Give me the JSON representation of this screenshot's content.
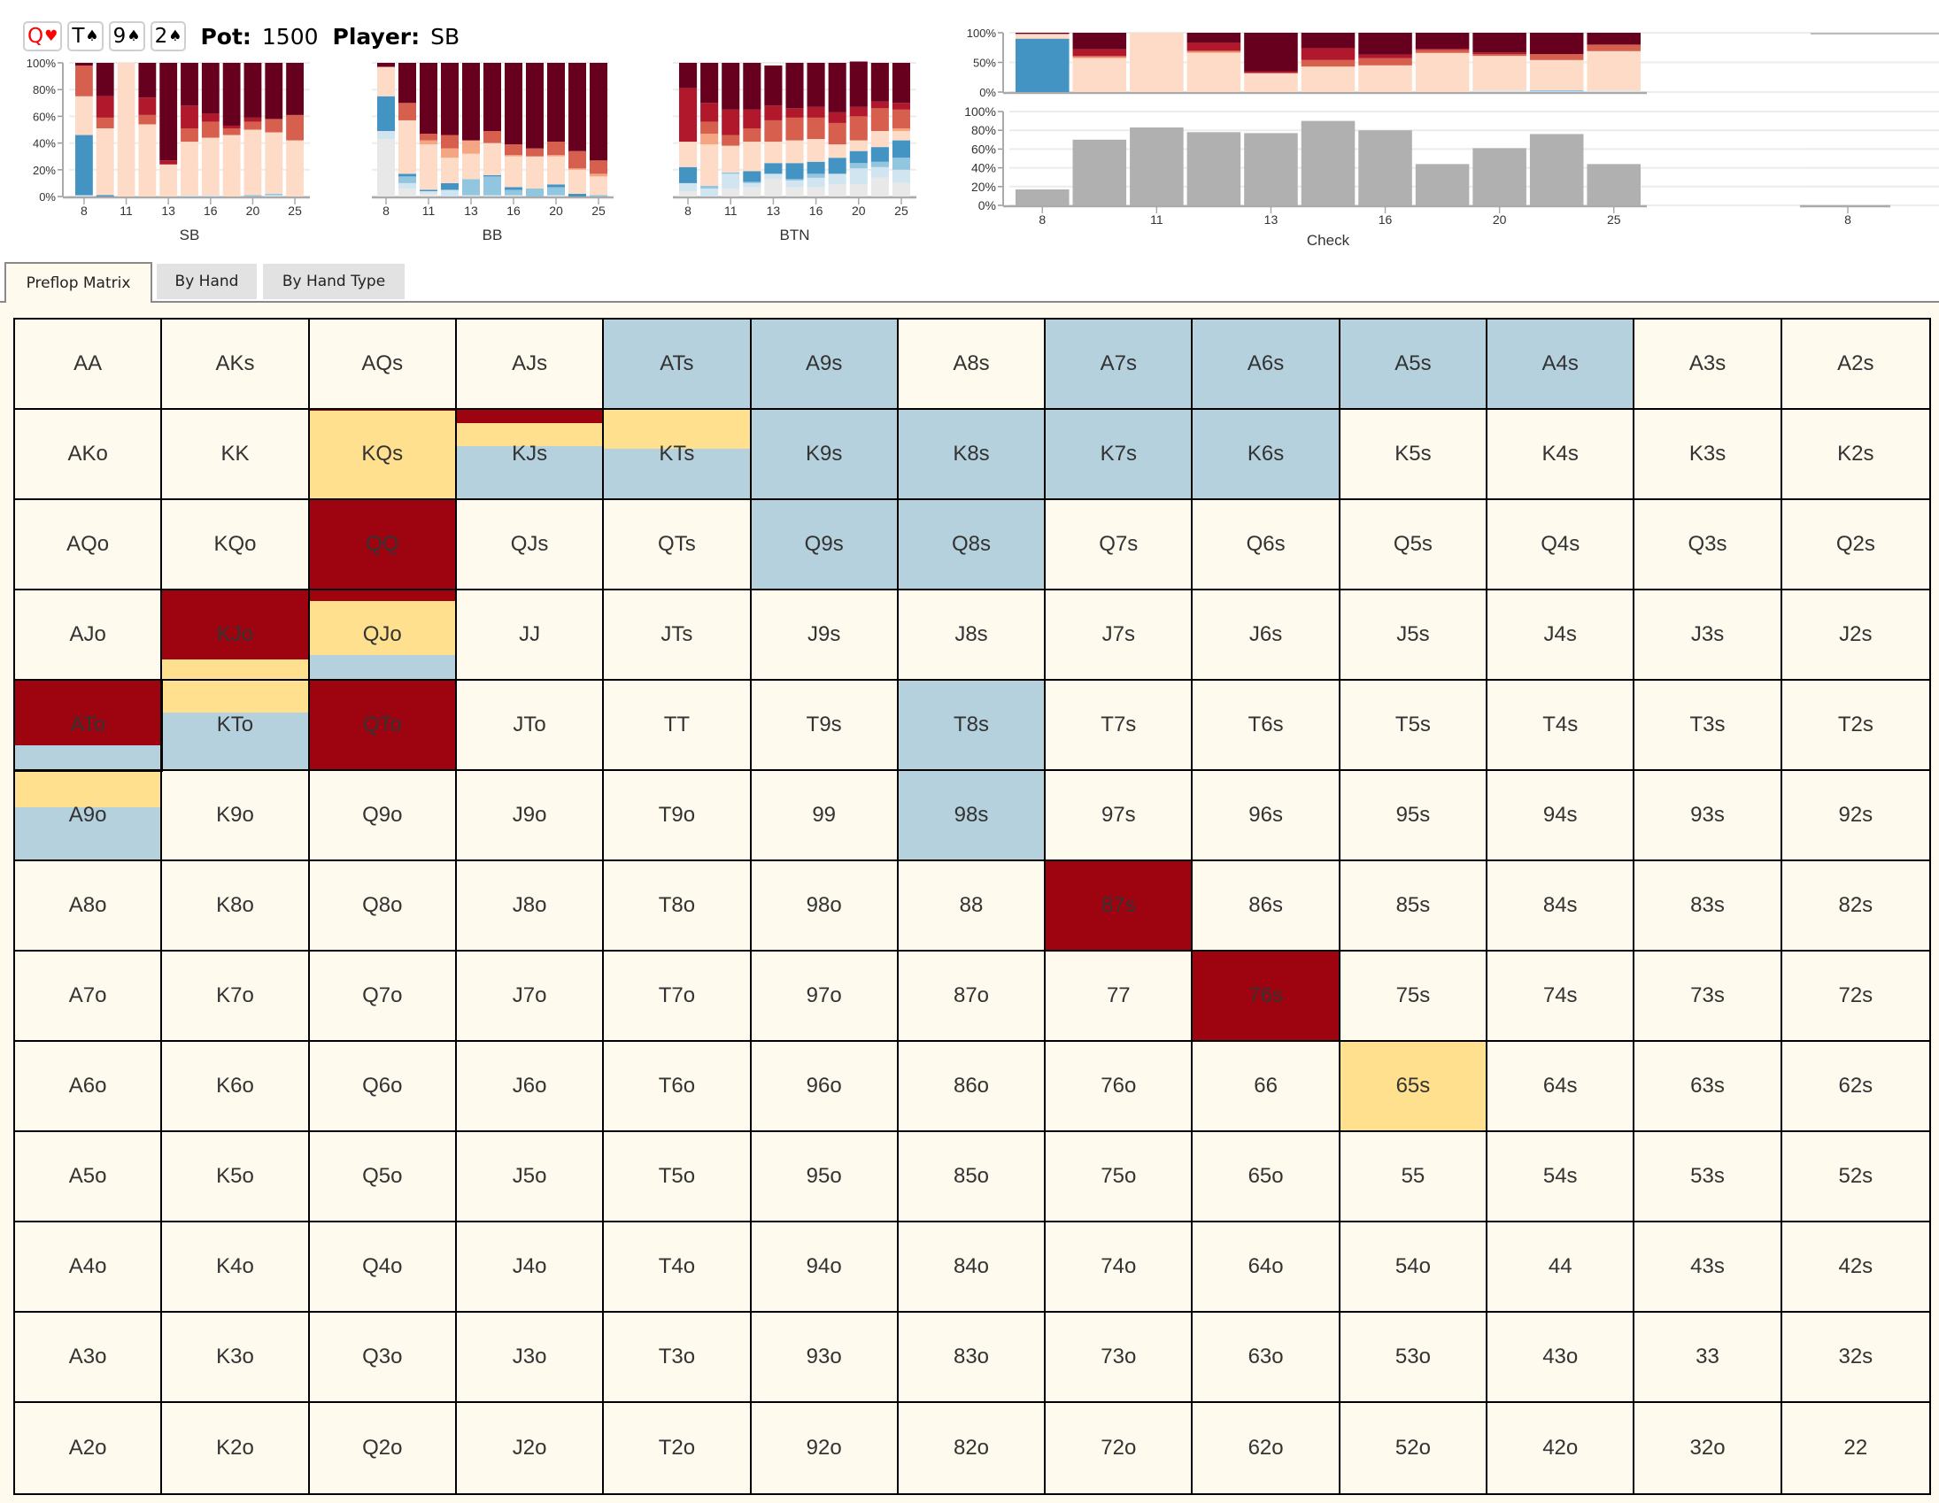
{
  "header": {
    "board": [
      {
        "rank": "Q",
        "suit": "♥",
        "color": "red"
      },
      {
        "rank": "T",
        "suit": "♠",
        "color": "black"
      },
      {
        "rank": "9",
        "suit": "♠",
        "color": "black"
      },
      {
        "rank": "2",
        "suit": "♠",
        "color": "black"
      }
    ],
    "pot_label": "Pot:",
    "pot_value": "1500",
    "player_label": "Player:",
    "player_value": "SB"
  },
  "colors": {
    "darkest_red": "#67001f",
    "red": "#b2182b",
    "salmon": "#d6604d",
    "light_salmon": "#f4a582",
    "peach": "#fddbc7",
    "light_grey": "#e8e8e8",
    "pale_blue": "#d1e5f0",
    "sky_blue": "#92c5de",
    "blue": "#4393c3",
    "grey_bar": "#b0b0b0",
    "cell_bg": "#fffaee",
    "cell_red": "#9e0410",
    "cell_yellow": "#ffe08f",
    "cell_blue": "#b5d1de"
  },
  "chart_data": [
    {
      "type": "bar",
      "stacked": true,
      "title": "",
      "xlabel": "SB",
      "ylabel": "",
      "ylim": [
        0,
        100
      ],
      "yticks": [
        "0%",
        "20%",
        "40%",
        "60%",
        "80%",
        "100%"
      ],
      "categories": [
        "8",
        "9",
        "11",
        "12",
        "13",
        "15",
        "16",
        "18",
        "20",
        "22",
        "25"
      ],
      "xtick_labels": [
        "8",
        "",
        "11",
        "",
        "13",
        "",
        "16",
        "",
        "20",
        "",
        "25"
      ],
      "series": [
        {
          "name": "light_grey",
          "color": "#e8e8e8",
          "values": [
            0,
            0,
            0,
            0,
            0,
            0,
            0,
            0,
            0,
            0,
            0
          ]
        },
        {
          "name": "pale_blue",
          "color": "#d1e5f0",
          "values": [
            1,
            0,
            0,
            0,
            0,
            1,
            1,
            0,
            0,
            1,
            0
          ]
        },
        {
          "name": "sky_blue",
          "color": "#92c5de",
          "values": [
            0,
            0,
            0,
            0,
            0,
            0,
            0,
            0,
            1,
            1,
            0
          ]
        },
        {
          "name": "blue",
          "color": "#4393c3",
          "values": [
            45,
            1,
            0,
            0,
            0,
            0,
            0,
            0,
            0,
            0,
            0
          ]
        },
        {
          "name": "peach",
          "color": "#fddbc7",
          "values": [
            29,
            50,
            100,
            54,
            24,
            40,
            43,
            46,
            49,
            46,
            42
          ]
        },
        {
          "name": "light_salmon",
          "color": "#f4a582",
          "values": [
            0,
            0,
            0,
            0,
            0,
            0,
            0,
            0,
            0,
            0,
            0
          ]
        },
        {
          "name": "salmon",
          "color": "#d6604d",
          "values": [
            23,
            8,
            0,
            7,
            0,
            10,
            12,
            5,
            6,
            10,
            19
          ]
        },
        {
          "name": "red",
          "color": "#b2182b",
          "values": [
            0,
            16,
            0,
            13,
            3,
            17,
            6,
            2,
            3,
            0,
            0
          ]
        },
        {
          "name": "darkest_red",
          "color": "#67001f",
          "values": [
            2,
            25,
            0,
            26,
            73,
            32,
            38,
            47,
            41,
            42,
            39
          ]
        }
      ]
    },
    {
      "type": "bar",
      "stacked": true,
      "title": "",
      "xlabel": "BB",
      "ylabel": "",
      "ylim": [
        0,
        100
      ],
      "yticks": [],
      "categories": [
        "8",
        "9",
        "11",
        "12",
        "13",
        "15",
        "16",
        "18",
        "20",
        "22",
        "25"
      ],
      "xtick_labels": [
        "8",
        "",
        "11",
        "",
        "13",
        "",
        "16",
        "",
        "20",
        "",
        "25"
      ],
      "series": [
        {
          "name": "light_grey",
          "color": "#e8e8e8",
          "values": [
            43,
            6,
            2,
            0,
            0,
            0,
            0,
            0,
            0,
            0,
            0
          ]
        },
        {
          "name": "pale_blue",
          "color": "#d1e5f0",
          "values": [
            6,
            4,
            2,
            5,
            1,
            1,
            1,
            0,
            1,
            0,
            0
          ]
        },
        {
          "name": "sky_blue",
          "color": "#92c5de",
          "values": [
            0,
            5,
            0,
            0,
            12,
            14,
            4,
            6,
            6,
            0,
            1
          ]
        },
        {
          "name": "blue",
          "color": "#4393c3",
          "values": [
            26,
            2,
            1,
            5,
            0,
            1,
            2,
            0,
            2,
            2,
            0
          ]
        },
        {
          "name": "peach",
          "color": "#fddbc7",
          "values": [
            22,
            40,
            34,
            19,
            19,
            24,
            23,
            24,
            21,
            18,
            14
          ]
        },
        {
          "name": "light_salmon",
          "color": "#f4a582",
          "values": [
            0,
            0,
            3,
            7,
            10,
            0,
            1,
            0,
            1,
            1,
            2
          ]
        },
        {
          "name": "salmon",
          "color": "#d6604d",
          "values": [
            0,
            13,
            5,
            10,
            0,
            9,
            8,
            6,
            10,
            13,
            10
          ]
        },
        {
          "name": "red",
          "color": "#b2182b",
          "values": [
            0,
            0,
            0,
            0,
            0,
            0,
            0,
            0,
            0,
            0,
            0
          ]
        },
        {
          "name": "darkest_red",
          "color": "#67001f",
          "values": [
            3,
            30,
            53,
            54,
            58,
            51,
            61,
            64,
            59,
            66,
            73
          ]
        }
      ]
    },
    {
      "type": "bar",
      "stacked": true,
      "title": "",
      "xlabel": "BTN",
      "ylabel": "",
      "ylim": [
        0,
        100
      ],
      "yticks": [],
      "categories": [
        "8",
        "9",
        "11",
        "12",
        "13",
        "15",
        "16",
        "18",
        "20",
        "22",
        "25"
      ],
      "xtick_labels": [
        "8",
        "",
        "11",
        "",
        "13",
        "",
        "16",
        "",
        "20",
        "",
        "25"
      ],
      "series": [
        {
          "name": "light_grey",
          "color": "#e8e8e8",
          "values": [
            4,
            0,
            6,
            7,
            13,
            7,
            7,
            9,
            9,
            14,
            10
          ]
        },
        {
          "name": "pale_blue",
          "color": "#d1e5f0",
          "values": [
            6,
            6,
            11,
            3,
            4,
            5,
            7,
            8,
            12,
            8,
            10
          ]
        },
        {
          "name": "sky_blue",
          "color": "#92c5de",
          "values": [
            0,
            2,
            1,
            1,
            0,
            1,
            3,
            0,
            4,
            4,
            9
          ]
        },
        {
          "name": "blue",
          "color": "#4393c3",
          "values": [
            12,
            0,
            0,
            8,
            8,
            12,
            9,
            12,
            9,
            11,
            13
          ]
        },
        {
          "name": "peach",
          "color": "#fddbc7",
          "values": [
            19,
            31,
            20,
            22,
            16,
            17,
            17,
            10,
            8,
            12,
            7
          ]
        },
        {
          "name": "light_salmon",
          "color": "#f4a582",
          "values": [
            0,
            8,
            0,
            0,
            0,
            0,
            0,
            0,
            0,
            0,
            2
          ]
        },
        {
          "name": "salmon",
          "color": "#d6604d",
          "values": [
            0,
            9,
            8,
            10,
            16,
            17,
            16,
            16,
            18,
            17,
            14
          ]
        },
        {
          "name": "red",
          "color": "#b2182b",
          "values": [
            40,
            14,
            19,
            14,
            11,
            7,
            8,
            8,
            7,
            5,
            5
          ]
        },
        {
          "name": "darkest_red",
          "color": "#67001f",
          "values": [
            19,
            30,
            35,
            35,
            30,
            34,
            33,
            37,
            34,
            29,
            30
          ]
        }
      ]
    },
    {
      "type": "bar",
      "stacked": true,
      "title": "",
      "xlabel": "",
      "ylabel": "",
      "ylim": [
        0,
        100
      ],
      "yticks": [
        "0%",
        "50%",
        "100%"
      ],
      "categories": [
        "8",
        "9",
        "11",
        "12",
        "13",
        "15",
        "16",
        "18",
        "20",
        "22",
        "25"
      ],
      "xtick_labels": [],
      "series": [
        {
          "name": "light_grey",
          "color": "#e8e8e8",
          "values": [
            0,
            0,
            0,
            0,
            0,
            0,
            0,
            0,
            0,
            0,
            0
          ]
        },
        {
          "name": "pale_blue",
          "color": "#d1e5f0",
          "values": [
            0,
            0,
            0,
            0,
            0,
            0,
            0,
            0,
            2,
            1,
            2
          ]
        },
        {
          "name": "sky_blue",
          "color": "#92c5de",
          "values": [
            0,
            0,
            0,
            0,
            0,
            0,
            0,
            0,
            0,
            2,
            0
          ]
        },
        {
          "name": "blue",
          "color": "#4393c3",
          "values": [
            90,
            0,
            0,
            0,
            0,
            0,
            0,
            0,
            0,
            0,
            0
          ]
        },
        {
          "name": "peach",
          "color": "#fddbc7",
          "values": [
            8,
            57,
            100,
            66,
            32,
            43,
            45,
            66,
            59,
            51,
            67
          ]
        },
        {
          "name": "light_salmon",
          "color": "#f4a582",
          "values": [
            0,
            2,
            0,
            2,
            0,
            0,
            0,
            0,
            0,
            0,
            0
          ]
        },
        {
          "name": "salmon",
          "color": "#d6604d",
          "values": [
            0,
            2,
            0,
            2,
            0,
            11,
            12,
            5,
            3,
            10,
            11
          ]
        },
        {
          "name": "red",
          "color": "#b2182b",
          "values": [
            0,
            11,
            0,
            13,
            3,
            20,
            6,
            2,
            3,
            0,
            0
          ]
        },
        {
          "name": "darkest_red",
          "color": "#67001f",
          "values": [
            2,
            28,
            0,
            17,
            65,
            26,
            37,
            27,
            33,
            36,
            20
          ]
        }
      ]
    },
    {
      "type": "bar",
      "stacked": false,
      "title": "",
      "xlabel": "Check",
      "ylabel": "",
      "ylim": [
        0,
        100
      ],
      "yticks": [
        "0%",
        "20%",
        "40%",
        "60%",
        "80%",
        "100%"
      ],
      "categories": [
        "8",
        "9",
        "11",
        "12",
        "13",
        "15",
        "16",
        "18",
        "20",
        "22",
        "25"
      ],
      "xtick_labels": [
        "8",
        "",
        "11",
        "",
        "13",
        "",
        "16",
        "",
        "20",
        "",
        "25"
      ],
      "series": [
        {
          "name": "Check",
          "color": "#b0b0b0",
          "values": [
            17,
            70,
            83,
            78,
            77,
            90,
            80,
            44,
            61,
            76,
            44
          ]
        }
      ]
    },
    {
      "type": "bar",
      "stacked": false,
      "title": "",
      "xlabel": "",
      "ylabel": "",
      "ylim": [
        0,
        100
      ],
      "yticks": [],
      "categories": [
        "8"
      ],
      "xtick_labels": [
        "8"
      ],
      "series": [
        {
          "name": "empty",
          "color": "#b0b0b0",
          "values": [
            0
          ]
        }
      ]
    }
  ],
  "tabs": [
    {
      "label": "Preflop Matrix",
      "active": true
    },
    {
      "label": "By Hand",
      "active": false
    },
    {
      "label": "By Hand Type",
      "active": false
    }
  ],
  "matrix": {
    "selected": "ATo",
    "rows": [
      [
        "AA",
        "AKs",
        "AQs",
        "AJs",
        "ATs",
        "A9s",
        "A8s",
        "A7s",
        "A6s",
        "A5s",
        "A4s",
        "A3s",
        "A2s"
      ],
      [
        "AKo",
        "KK",
        "KQs",
        "KJs",
        "KTs",
        "K9s",
        "K8s",
        "K7s",
        "K6s",
        "K5s",
        "K4s",
        "K3s",
        "K2s"
      ],
      [
        "AQo",
        "KQo",
        "QQ",
        "QJs",
        "QTs",
        "Q9s",
        "Q8s",
        "Q7s",
        "Q6s",
        "Q5s",
        "Q4s",
        "Q3s",
        "Q2s"
      ],
      [
        "AJo",
        "KJo",
        "QJo",
        "JJ",
        "JTs",
        "J9s",
        "J8s",
        "J7s",
        "J6s",
        "J5s",
        "J4s",
        "J3s",
        "J2s"
      ],
      [
        "ATo",
        "KTo",
        "QTo",
        "JTo",
        "TT",
        "T9s",
        "T8s",
        "T7s",
        "T6s",
        "T5s",
        "T4s",
        "T3s",
        "T2s"
      ],
      [
        "A9o",
        "K9o",
        "Q9o",
        "J9o",
        "T9o",
        "99",
        "98s",
        "97s",
        "96s",
        "95s",
        "94s",
        "93s",
        "92s"
      ],
      [
        "A8o",
        "K8o",
        "Q8o",
        "J8o",
        "T8o",
        "98o",
        "88",
        "87s",
        "86s",
        "85s",
        "84s",
        "83s",
        "82s"
      ],
      [
        "A7o",
        "K7o",
        "Q7o",
        "J7o",
        "T7o",
        "97o",
        "87o",
        "77",
        "76s",
        "75s",
        "74s",
        "73s",
        "72s"
      ],
      [
        "A6o",
        "K6o",
        "Q6o",
        "J6o",
        "T6o",
        "96o",
        "86o",
        "76o",
        "66",
        "65s",
        "64s",
        "63s",
        "62s"
      ],
      [
        "A5o",
        "K5o",
        "Q5o",
        "J5o",
        "T5o",
        "95o",
        "85o",
        "75o",
        "65o",
        "55",
        "54s",
        "53s",
        "52s"
      ],
      [
        "A4o",
        "K4o",
        "Q4o",
        "J4o",
        "T4o",
        "94o",
        "84o",
        "74o",
        "64o",
        "54o",
        "44",
        "43s",
        "42s"
      ],
      [
        "A3o",
        "K3o",
        "Q3o",
        "J3o",
        "T3o",
        "93o",
        "83o",
        "73o",
        "63o",
        "53o",
        "43o",
        "33",
        "32s"
      ],
      [
        "A2o",
        "K2o",
        "Q2o",
        "J2o",
        "T2o",
        "92o",
        "82o",
        "72o",
        "62o",
        "52o",
        "42o",
        "32o",
        "22"
      ]
    ],
    "strategies": {
      "ATs": {
        "blue": 100
      },
      "A9s": {
        "blue": 100
      },
      "A7s": {
        "blue": 100
      },
      "A6s": {
        "blue": 100
      },
      "A5s": {
        "blue": 100
      },
      "A4s": {
        "blue": 100
      },
      "KQs": {
        "yellow": 99,
        "red": 1
      },
      "KJs": {
        "blue": 59,
        "yellow": 26,
        "red": 15
      },
      "KTs": {
        "blue": 56,
        "yellow": 44
      },
      "K9s": {
        "blue": 100
      },
      "K8s": {
        "blue": 100
      },
      "K7s": {
        "blue": 100
      },
      "K6s": {
        "blue": 100
      },
      "QQ": {
        "red": 100
      },
      "Q9s": {
        "blue": 100
      },
      "Q8s": {
        "blue": 100
      },
      "KJo": {
        "yellow": 22,
        "red": 78
      },
      "QJo": {
        "blue": 27,
        "yellow": 61,
        "red": 12
      },
      "ATo": {
        "blue": 27,
        "red": 73
      },
      "KTo": {
        "blue": 64,
        "yellow": 36
      },
      "QTo": {
        "red": 100
      },
      "T8s": {
        "blue": 100
      },
      "A9o": {
        "blue": 59,
        "yellow": 41
      },
      "98s": {
        "blue": 100
      },
      "87s": {
        "red": 100
      },
      "76s": {
        "red": 100
      },
      "65s": {
        "yellow": 100
      }
    }
  }
}
